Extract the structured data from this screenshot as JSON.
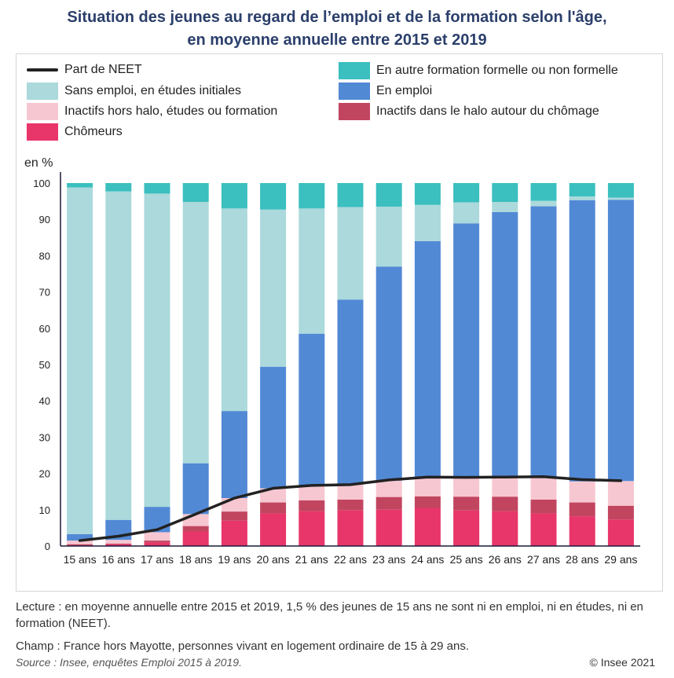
{
  "title_line1": "Situation des jeunes au regard de l’emploi et de la formation selon l'âge,",
  "title_line2": "en moyenne annuelle entre 2015 et 2019",
  "unit_label": "en %",
  "legend": {
    "neet": "Part de NEET",
    "etudes": "Sans emploi, en études initiales",
    "inactifs_hors": "Inactifs hors halo, études ou formation",
    "chomeurs": "Chômeurs",
    "autre_formation": "En autre formation formelle ou non formelle",
    "emploi": "En emploi",
    "halo": "Inactifs dans le halo autour du chômage"
  },
  "notes": {
    "lecture": "Lecture : en moyenne annuelle entre 2015 et 2019, 1,5 % des jeunes de 15 ans ne sont ni en emploi, ni en études, ni en formation (NEET).",
    "champ": "Champ : France hors Mayotte, personnes vivant en logement ordinaire de 15 à 29 ans.",
    "source": "Source : Insee, enquêtes Emploi 2015 à 2019.",
    "copyright": "© Insee 2021"
  },
  "colors": {
    "chomeurs": "#e8356a",
    "halo": "#c24560",
    "inactifs_hors": "#f7c7d1",
    "emploi": "#5289d5",
    "etudes": "#abd9dc",
    "autre_formation": "#3bbfbf",
    "neet": "#222222",
    "axis": "#1a1a3a"
  },
  "chart_data": {
    "type": "bar",
    "stacked": true,
    "categories": [
      "15 ans",
      "16 ans",
      "17 ans",
      "18 ans",
      "19 ans",
      "20 ans",
      "21 ans",
      "22 ans",
      "23 ans",
      "24 ans",
      "25 ans",
      "26 ans",
      "27 ans",
      "28 ans",
      "29 ans"
    ],
    "ylim": [
      0,
      100
    ],
    "yticks": [
      0,
      10,
      20,
      30,
      40,
      50,
      60,
      70,
      80,
      90,
      100
    ],
    "ylabel": "en %",
    "series": [
      {
        "key": "chomeurs",
        "name": "Chômeurs",
        "values": [
          0.2,
          0.5,
          1.0,
          4.0,
          7.0,
          9.0,
          9.6,
          9.8,
          10.0,
          10.5,
          9.8,
          9.6,
          9.0,
          8.2,
          7.3
        ]
      },
      {
        "key": "halo",
        "name": "Inactifs dans le halo autour du chômage",
        "values": [
          0.3,
          0.2,
          0.5,
          1.5,
          2.5,
          3.0,
          3.0,
          3.0,
          3.5,
          3.2,
          3.8,
          4.0,
          3.8,
          3.8,
          3.8
        ]
      },
      {
        "key": "inactifs_hors",
        "name": "Inactifs hors halo, études ou formation",
        "values": [
          1.0,
          1.0,
          2.3,
          3.3,
          3.7,
          3.9,
          3.9,
          4.1,
          4.5,
          5.3,
          5.3,
          5.4,
          6.3,
          5.8,
          6.8
        ]
      },
      {
        "key": "emploi",
        "name": "En emploi",
        "values": [
          1.8,
          5.5,
          7.0,
          14.0,
          24.0,
          33.5,
          42.0,
          51.0,
          59.0,
          65.0,
          70.0,
          73.0,
          74.5,
          77.5,
          77.5
        ]
      },
      {
        "key": "etudes",
        "name": "Sans emploi, en études initiales",
        "values": [
          95.5,
          90.5,
          86.3,
          72.0,
          55.8,
          43.3,
          34.5,
          25.5,
          16.5,
          10.0,
          5.8,
          2.8,
          1.5,
          1.0,
          0.6
        ]
      },
      {
        "key": "autre_formation",
        "name": "En autre formation formelle ou non formelle",
        "values": [
          1.2,
          2.3,
          2.9,
          5.2,
          7.0,
          7.3,
          7.0,
          6.6,
          6.5,
          6.0,
          5.3,
          5.2,
          4.9,
          3.7,
          4.0
        ]
      }
    ],
    "line": {
      "key": "neet",
      "name": "Part de NEET",
      "values": [
        1.5,
        2.7,
        4.5,
        8.8,
        13.2,
        15.9,
        16.7,
        16.9,
        18.2,
        19.0,
        18.9,
        19.0,
        19.1,
        18.3,
        18.0
      ]
    },
    "grid": false,
    "legend_position": "top"
  }
}
